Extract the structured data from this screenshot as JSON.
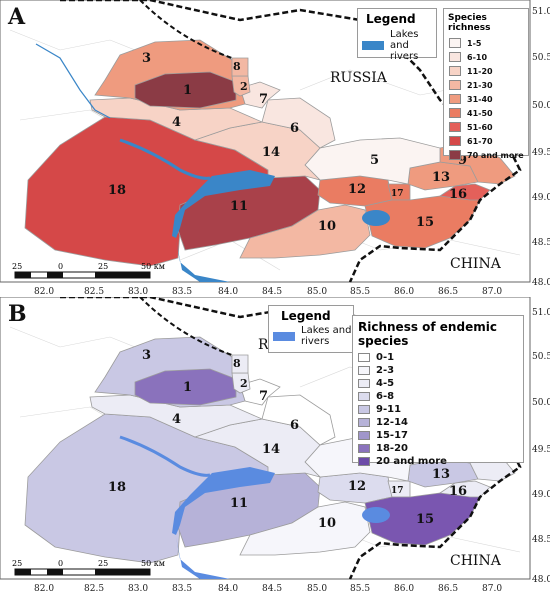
{
  "panelA": {
    "letter": "A",
    "country_north": "RUSSIA",
    "country_south": "CHINA",
    "lakes_legend_title": "Legend",
    "lakes_legend_label_1": "Lakes and",
    "lakes_legend_label_2": "rivers",
    "classes_title": "Species richness",
    "classes": [
      {
        "label": "1-5",
        "color": "#fbf4f2"
      },
      {
        "label": "6-10",
        "color": "#f9e6e0"
      },
      {
        "label": "11-20",
        "color": "#f7d3c6"
      },
      {
        "label": "21-30",
        "color": "#f3b8a3"
      },
      {
        "label": "31-40",
        "color": "#ef9b7f"
      },
      {
        "label": "41-50",
        "color": "#ea7c62"
      },
      {
        "label": "51-60",
        "color": "#e4605a"
      },
      {
        "label": "61-70",
        "color": "#d54848"
      },
      {
        "label": "70 and more",
        "color": "#8b3b45"
      }
    ],
    "region_colors": {
      "1": "#8b3b45",
      "2": "#f3b8a3",
      "3": "#ef9b7f",
      "4": "#f7d3c6",
      "5": "#fbf4f2",
      "6": "#f9e6e0",
      "7": "#f9e6e0",
      "8": "#f3b8a3",
      "9": "#ef9b7f",
      "10": "#f3b8a3",
      "11": "#a9414a",
      "12": "#ea7c62",
      "13": "#ef9b7f",
      "14": "#f7d3c6",
      "15": "#ea7c62",
      "16": "#e4605a",
      "17": "#ea7c62",
      "18": "#d54848"
    },
    "scale_labels": [
      "25",
      "0",
      "25",
      "50 км"
    ]
  },
  "panelB": {
    "letter": "B",
    "country_north": "RUSSIA",
    "country_south": "CHINA",
    "lakes_legend_title": "Legend",
    "lakes_legend_label_1": "Lakes and",
    "lakes_legend_label_2": "rivers",
    "classes_title": "Richness of endemic species",
    "classes": [
      {
        "label": "0-1",
        "color": "#ffffff"
      },
      {
        "label": "2-3",
        "color": "#f6f6fb"
      },
      {
        "label": "4-5",
        "color": "#ececf5"
      },
      {
        "label": "6-8",
        "color": "#dcdcee"
      },
      {
        "label": "9-11",
        "color": "#c9c8e4"
      },
      {
        "label": "12-14",
        "color": "#b6b2d8"
      },
      {
        "label": "15-17",
        "color": "#a096cb"
      },
      {
        "label": "18-20",
        "color": "#8a72bc"
      },
      {
        "label": "20 and more",
        "color": "#6c4aa8"
      }
    ],
    "region_colors": {
      "1": "#8a72bc",
      "2": "#ececf5",
      "3": "#c9c8e4",
      "4": "#ececf5",
      "5": "#f6f6fb",
      "6": "#ffffff",
      "7": "#ffffff",
      "8": "#ececf5",
      "9": "#ececf5",
      "10": "#f6f6fb",
      "11": "#b6b2d8",
      "12": "#dcdcee",
      "13": "#c9c8e4",
      "14": "#ececf5",
      "15": "#7a56b0",
      "16": "#ececf5",
      "17": "#ececf5",
      "18": "#c9c8e4"
    },
    "scale_labels": [
      "25",
      "0",
      "25",
      "50 км"
    ]
  },
  "longitude_labels": [
    "82.0",
    "82.5",
    "83.0",
    "83.5",
    "84.0",
    "84.5",
    "85.0",
    "85.5",
    "86.0",
    "86.5",
    "87.0"
  ],
  "latitude_labels_a": [
    "51.0",
    "50.5",
    "50.0",
    "49.5",
    "49.0",
    "48.5",
    "48.0"
  ],
  "latitude_labels_b": [
    "51.0",
    "50.5",
    "50.0",
    "49.5",
    "49.0",
    "48.5",
    "48.0"
  ],
  "accent": {
    "lake": "#3a86c8",
    "lake_b": "#5a8be0",
    "border": "#111111"
  }
}
